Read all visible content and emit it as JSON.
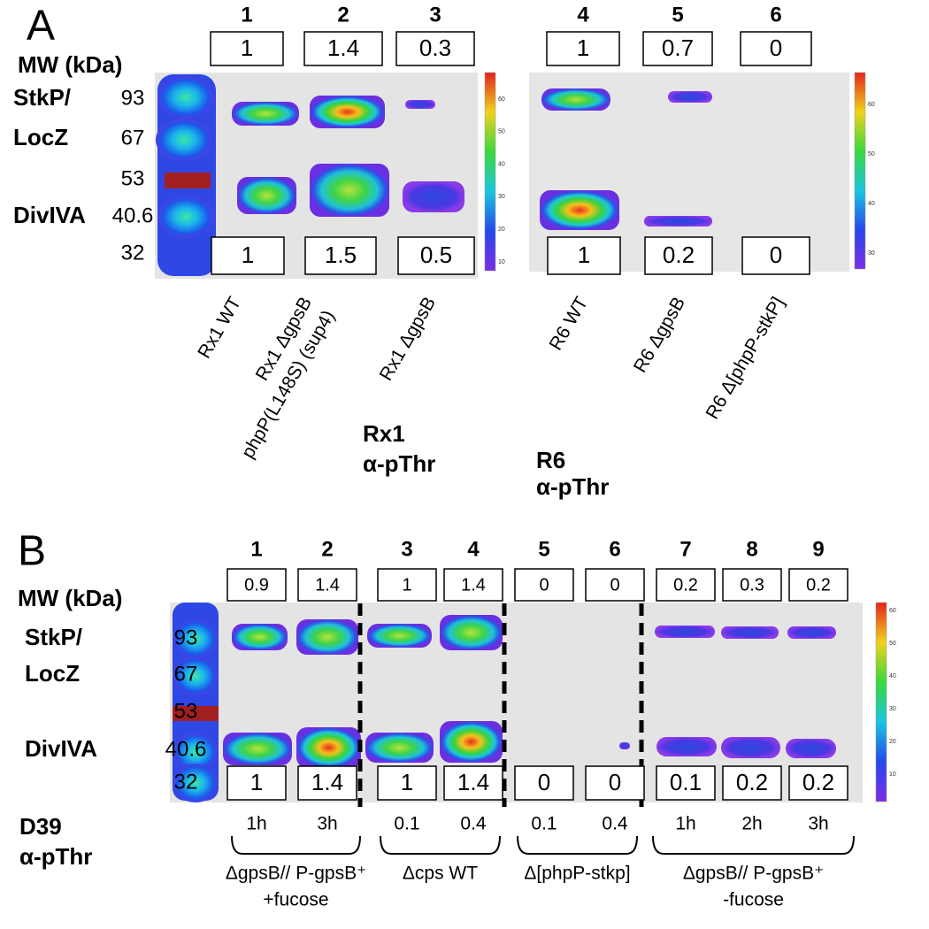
{
  "panel_a": {
    "letter": "A",
    "mw_label": "MW (kDa)",
    "protein_labels": [
      [
        "StkP/",
        "LocZ"
      ],
      [
        "DivIVA"
      ]
    ],
    "mw_markers": [
      "93",
      "67",
      "53",
      "40.6",
      "32"
    ],
    "lanes": [
      "1",
      "2",
      "3",
      "4",
      "5",
      "6"
    ],
    "top_values": [
      "1",
      "1.4",
      "0.3",
      "1",
      "0.7",
      "0"
    ],
    "bottom_values": [
      "1",
      "1.5",
      "0.5",
      "1",
      "0.2",
      "0"
    ],
    "strains": [
      [
        "Rx1 WT"
      ],
      [
        "Rx1 ΔgpsB",
        "phpP(L148S) (sup4)"
      ],
      [
        "Rx1 ΔgpsB"
      ],
      [
        "R6 WT"
      ],
      [
        "R6 ΔgpsB"
      ],
      [
        "R6 Δ[phpP-stkP]"
      ]
    ],
    "blots": [
      {
        "strain": "Rx1",
        "antibody": "α-pThr",
        "colorbar_ticks": [
          "10",
          "20",
          "30",
          "40",
          "50",
          "60"
        ]
      },
      {
        "strain": "R6",
        "antibody": "α-pThr",
        "colorbar_ticks": [
          "30",
          "40",
          "50",
          "60"
        ]
      }
    ]
  },
  "panel_b": {
    "letter": "B",
    "mw_label": "MW (kDa)",
    "protein_labels": [
      [
        "StkP/",
        "LocZ"
      ],
      [
        "DivIVA"
      ]
    ],
    "mw_markers": [
      "93",
      "67",
      "53",
      "40.6",
      "32"
    ],
    "lanes": [
      "1",
      "2",
      "3",
      "4",
      "5",
      "6",
      "7",
      "8",
      "9"
    ],
    "top_values": [
      "0.9",
      "1.4",
      "1",
      "1.4",
      "0",
      "0",
      "0.2",
      "0.3",
      "0.2"
    ],
    "bottom_values": [
      "1",
      "1.4",
      "1",
      "1.4",
      "0",
      "0",
      "0.1",
      "0.2",
      "0.2"
    ],
    "conditions": [
      "1h",
      "3h",
      "0.1",
      "0.4",
      "0.1",
      "0.4",
      "1h",
      "2h",
      "3h"
    ],
    "groups": [
      [
        "ΔgpsB// P-gpsB⁺",
        "+fucose"
      ],
      [
        "Δcps WT"
      ],
      [
        "Δ[phpP-stkp]"
      ],
      [
        "ΔgpsB// P-gpsB⁺",
        "-fucose"
      ]
    ],
    "strain": "D39",
    "antibody": "α-pThr",
    "colorbar_ticks": [
      "10",
      "20",
      "30",
      "40",
      "50",
      "60"
    ]
  }
}
